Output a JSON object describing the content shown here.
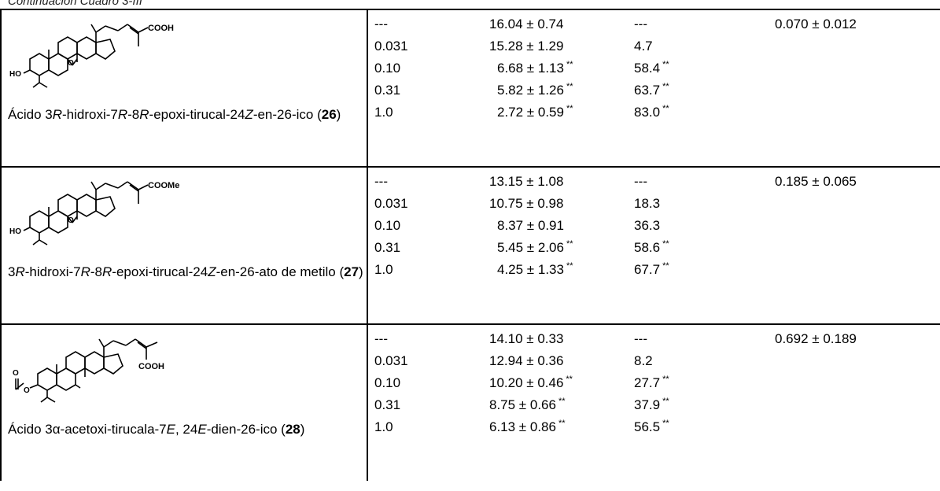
{
  "caption": "Continuación Cuadro 3-III",
  "rows": [
    {
      "name_parts": [
        "Ácido 3",
        "R",
        "-hidroxi-7",
        "R",
        "-8",
        "R",
        "-epoxi-tirucal-24",
        "Z",
        "-en-26-ico ("
      ],
      "number": "26",
      "name_close": ")",
      "molecule": {
        "group_label": "COOH",
        "hydroxyl": "HO",
        "epoxide": "O"
      },
      "doses": [
        "---",
        "0.031",
        "0.10",
        "0.31",
        "1.0"
      ],
      "means": [
        "16.04 ± 0.74",
        "15.28 ± 1.29",
        "6.68 ± 1.13",
        "5.82 ± 1.26",
        "2.72 ± 0.59"
      ],
      "means_sig": [
        "",
        "",
        "**",
        "**",
        "**"
      ],
      "inhibitions": [
        "---",
        "4.7",
        "58.4",
        "63.7",
        "83.0"
      ],
      "inhibitions_sig": [
        "",
        "",
        "**",
        "**",
        "**"
      ],
      "ed50": "0.070 ± 0.012"
    },
    {
      "name_parts": [
        "3",
        "R",
        "-hidroxi-7",
        "R",
        "-8",
        "R",
        "-epoxi-tirucal-24",
        "Z",
        "-en-26-ato de metilo ("
      ],
      "number": "27",
      "name_close": ")",
      "molecule": {
        "group_label": "COOMe",
        "hydroxyl": "HO",
        "epoxide": "O"
      },
      "doses": [
        "---",
        "0.031",
        "0.10",
        "0.31",
        "1.0"
      ],
      "means": [
        "13.15 ± 1.08",
        "10.75 ± 0.98",
        "8.37 ± 0.91",
        "5.45 ± 2.06",
        "4.25 ± 1.33"
      ],
      "means_sig": [
        "",
        "",
        "",
        "**",
        "**"
      ],
      "inhibitions": [
        "---",
        "18.3",
        "36.3",
        "58.6",
        "67.7"
      ],
      "inhibitions_sig": [
        "",
        "",
        "",
        "**",
        "**"
      ],
      "ed50": "0.185 ± 0.065"
    },
    {
      "name_parts": [
        "Ácido 3α-acetoxi-tirucala-7",
        "E",
        ", 24",
        "E",
        "-dien-26-ico ("
      ],
      "number": "28",
      "name_close": ")",
      "molecule": {
        "group_label": "COOH",
        "ester_o1": "O",
        "ester_o2": "O"
      },
      "doses": [
        "---",
        "0.031",
        "0.10",
        "0.31",
        "1.0"
      ],
      "means": [
        "14.10 ± 0.33",
        "12.94 ± 0.36",
        "10.20 ± 0.46",
        "8.75 ± 0.66",
        "6.13 ± 0.86"
      ],
      "means_sig": [
        "",
        "",
        "**",
        "**",
        "**"
      ],
      "inhibitions": [
        "---",
        "8.2",
        "27.7",
        "37.9",
        "56.5"
      ],
      "inhibitions_sig": [
        "",
        "",
        "**",
        "**",
        "**"
      ],
      "ed50": "0.692 ± 0.189"
    }
  ]
}
